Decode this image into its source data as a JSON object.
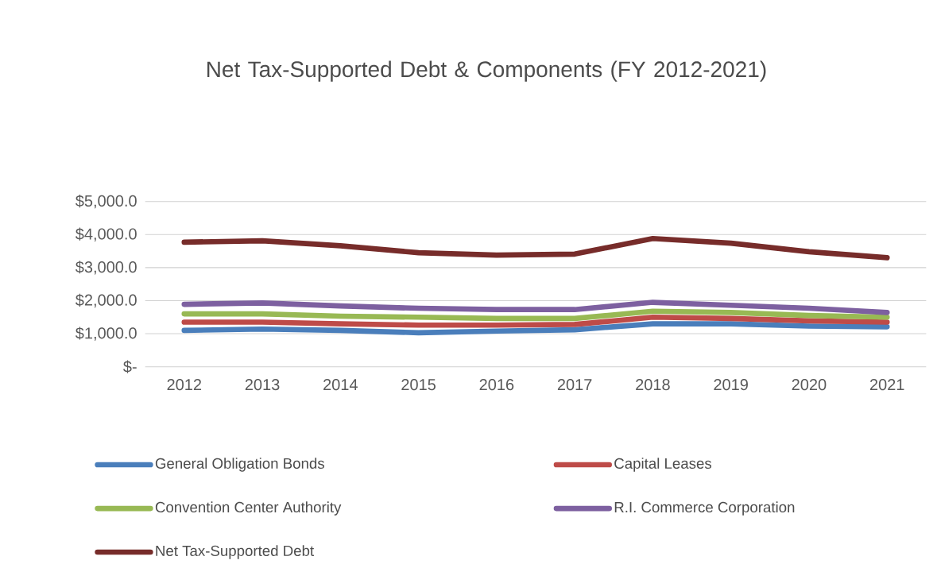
{
  "chart_data": {
    "type": "line",
    "title": "Net Tax-Supported Debt & Components (FY 2012-2021)",
    "categories": [
      "2012",
      "2013",
      "2014",
      "2015",
      "2016",
      "2017",
      "2018",
      "2019",
      "2020",
      "2021"
    ],
    "series": [
      {
        "name": "General Obligation Bonds",
        "color": "#4a7ebb",
        "values": [
          1100,
          1140,
          1100,
          1030,
          1080,
          1120,
          1300,
          1300,
          1230,
          1210
        ]
      },
      {
        "name": "Capital Leases",
        "color": "#be4b48",
        "values": [
          1350,
          1350,
          1300,
          1260,
          1260,
          1280,
          1500,
          1460,
          1390,
          1350
        ]
      },
      {
        "name": "Convention Center Authority",
        "color": "#98b954",
        "values": [
          1600,
          1600,
          1530,
          1500,
          1460,
          1460,
          1680,
          1640,
          1550,
          1500
        ]
      },
      {
        "name": "R.I. Commerce Corporation",
        "color": "#7d60a0",
        "values": [
          1890,
          1930,
          1840,
          1770,
          1730,
          1730,
          1950,
          1860,
          1770,
          1640
        ]
      },
      {
        "name": "Net Tax-Supported Debt",
        "color": "#772c2a",
        "values": [
          3770,
          3810,
          3660,
          3450,
          3380,
          3410,
          3880,
          3740,
          3480,
          3300
        ]
      }
    ],
    "ylim": [
      0,
      5000
    ],
    "yticks": [
      {
        "value": 0,
        "label": "$-"
      },
      {
        "value": 1000,
        "label": "$1,000.0"
      },
      {
        "value": 2000,
        "label": "$2,000.0"
      },
      {
        "value": 3000,
        "label": "$3,000.0"
      },
      {
        "value": 4000,
        "label": "$4,000.0"
      },
      {
        "value": 5000,
        "label": "$5,000.0"
      }
    ],
    "grid": "y",
    "legend": "bottom",
    "line_style": "solid"
  }
}
